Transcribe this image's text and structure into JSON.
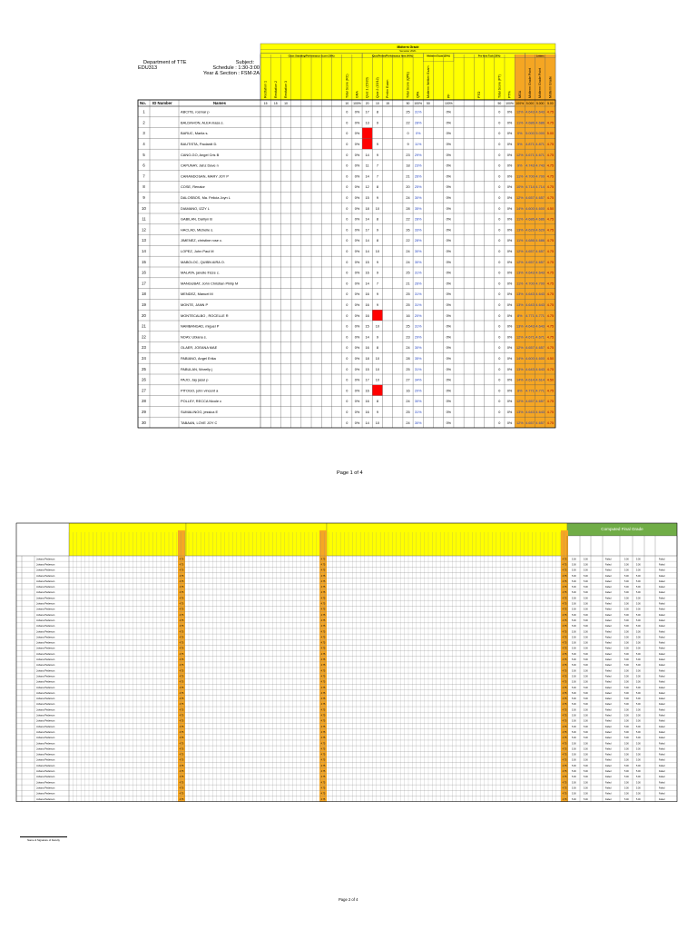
{
  "page1": {
    "department": "Department of TTE",
    "course": "EDU313",
    "subject_label": "Subject:",
    "schedule": "Schedule : 1:30-3:00",
    "year_section": "Year & Section : FSM-2A",
    "header": {
      "grade_title": "Midterm Grade",
      "semester": "Semester 2020-",
      "groups": [
        "Class Standing/Performance Score (30%)",
        "Quiz/Prelim/Performance Item (40%)",
        "Midterm Exam (30%)",
        "Pre-Item Task (30%)",
        "Letters"
      ],
      "columns": [
        "Recitation 1",
        "Recitation 2",
        "Recitation 3",
        "",
        "",
        "",
        "",
        "",
        "Total Score (RC)",
        "GRA",
        "Quiz 1 (15/20)",
        "Quiz 2 (15/12)",
        "Prelim Exam",
        "",
        "Total Score (QPE)",
        "QPA",
        "Midterm Written Exam",
        "",
        "PF",
        "",
        "",
        "PTO",
        "",
        "Total Score (PT)",
        "PT%",
        "MGA",
        "Midterm Grade Point",
        "Midterm Grade Point",
        "Midterm Grade"
      ],
      "row_no": "No.",
      "row_id": "ID Number",
      "row_names": "Names",
      "max_values": [
        "15",
        "15",
        "10",
        "",
        "",
        "",
        "",
        "",
        "10",
        "100%",
        "20",
        "10",
        "15",
        "",
        "50",
        "100%",
        "50",
        "",
        "100%",
        "",
        "",
        "",
        "",
        "50",
        "100%",
        "100%",
        "5.000",
        "5.000",
        "5.00"
      ]
    },
    "students": [
      {
        "no": "1",
        "name": "ABCITE, rosmar p",
        "gra": "0",
        "grp": "0%",
        "q1": "17",
        "q2": "8",
        "q1red": false,
        "q2red": false,
        "qpe": "25",
        "qpa": "31%",
        "mf": "0%",
        "pt": "0",
        "ptp": "0%",
        "mga": "12%",
        "g1": "4.643",
        "g2": "4.643",
        "mg": "4.75"
      },
      {
        "no": "2",
        "name": "BALDAHON, ALEA niasa s.",
        "gra": "0",
        "grp": "0%",
        "q1": "13",
        "q2": "9",
        "q1red": false,
        "q2red": false,
        "qpe": "22",
        "qpa": "28%",
        "mf": "0%",
        "pt": "0",
        "ptp": "0%",
        "mga": "11%",
        "g1": "4.686",
        "g2": "4.686",
        "mg": "4.75"
      },
      {
        "no": "3",
        "name": "BARUC, Mariia s.",
        "gra": "0",
        "grp": "0%",
        "q1": "",
        "q2": "",
        "q1red": true,
        "q2red": false,
        "qpe": "0",
        "qpa": "0%",
        "mf": "0%",
        "pt": "0",
        "ptp": "0%",
        "mga": "0%",
        "g1": "5.000",
        "g2": "5.000",
        "mg": "5.00"
      },
      {
        "no": "4",
        "name": "BAUTISTA, Paolardt D.",
        "gra": "0",
        "grp": "0%",
        "q1": "",
        "q2": "9",
        "q1red": true,
        "q2red": false,
        "qpe": "9",
        "qpa": "11%",
        "mf": "0%",
        "pt": "0",
        "ptp": "0%",
        "mga": "5%",
        "g1": "4.871",
        "g2": "4.871",
        "mg": "4.75"
      },
      {
        "no": "5",
        "name": "CANO-GO, Angel Cris B",
        "gra": "0",
        "grp": "0%",
        "q1": "14",
        "q2": "9",
        "q1red": false,
        "q2red": false,
        "qpe": "23",
        "qpa": "29%",
        "mf": "0%",
        "pt": "0",
        "ptp": "0%",
        "mga": "12%",
        "g1": "4.671",
        "g2": "4.671",
        "mg": "4.75"
      },
      {
        "no": "6",
        "name": "CAPUNAY, Jahz Dave n",
        "gra": "0",
        "grp": "0%",
        "q1": "11",
        "q2": "7",
        "q1red": false,
        "q2red": false,
        "qpe": "18",
        "qpa": "23%",
        "mf": "0%",
        "pt": "0",
        "ptp": "0%",
        "mga": "9%",
        "g1": "4.743",
        "g2": "4.743",
        "mg": "4.75"
      },
      {
        "no": "7",
        "name": "CARANDOSAN, MARY JOY P",
        "gra": "0",
        "grp": "0%",
        "q1": "14",
        "q2": "7",
        "q1red": false,
        "q2red": false,
        "qpe": "21",
        "qpa": "26%",
        "mf": "0%",
        "pt": "0",
        "ptp": "0%",
        "mga": "11%",
        "g1": "4.700",
        "g2": "4.700",
        "mg": "4.75"
      },
      {
        "no": "8",
        "name": "COSE, Renalor",
        "gra": "0",
        "grp": "0%",
        "q1": "12",
        "q2": "8",
        "q1red": false,
        "q2red": false,
        "qpe": "20",
        "qpa": "25%",
        "mf": "0%",
        "pt": "0",
        "ptp": "0%",
        "mga": "10%",
        "g1": "4.714",
        "g2": "4.714",
        "mg": "4.75"
      },
      {
        "no": "9",
        "name": "DALOSBOS, Ma. Felicia Joyn L",
        "gra": "0",
        "grp": "0%",
        "q1": "15",
        "q2": "9",
        "q1red": false,
        "q2red": false,
        "qpe": "24",
        "qpa": "30%",
        "mf": "0%",
        "pt": "0",
        "ptp": "0%",
        "mga": "12%",
        "g1": "4.657",
        "g2": "4.657",
        "mg": "4.75"
      },
      {
        "no": "10",
        "name": "DIAMANO, IZZY L",
        "gra": "0",
        "grp": "0%",
        "q1": "18",
        "q2": "10",
        "q1red": false,
        "q2red": false,
        "qpe": "28",
        "qpa": "35%",
        "mf": "0%",
        "pt": "0",
        "ptp": "0%",
        "mga": "14%",
        "g1": "4.600",
        "g2": "4.600",
        "mg": "4.50"
      },
      {
        "no": "11",
        "name": "GABILAN, Darilyn B",
        "gra": "0",
        "grp": "0%",
        "q1": "14",
        "q2": "8",
        "q1red": false,
        "q2red": false,
        "qpe": "22",
        "qpa": "28%",
        "mf": "0%",
        "pt": "0",
        "ptp": "0%",
        "mga": "11%",
        "g1": "4.686",
        "g2": "4.686",
        "mg": "4.75"
      },
      {
        "no": "12",
        "name": "HACLAD, Michelle s.",
        "gra": "0",
        "grp": "0%",
        "q1": "17",
        "q2": "9",
        "q1red": false,
        "q2red": false,
        "qpe": "26",
        "qpa": "33%",
        "mf": "0%",
        "pt": "0",
        "ptp": "0%",
        "mga": "13%",
        "g1": "4.629",
        "g2": "4.629",
        "mg": "4.75"
      },
      {
        "no": "13",
        "name": "JIMENEZ, christine rose c.",
        "gra": "0",
        "grp": "0%",
        "q1": "14",
        "q2": "8",
        "q1red": false,
        "q2red": false,
        "qpe": "22",
        "qpa": "28%",
        "mf": "0%",
        "pt": "0",
        "ptp": "0%",
        "mga": "11%",
        "g1": "4.686",
        "g2": "4.686",
        "mg": "4.75"
      },
      {
        "no": "14",
        "name": "LOPEZ, John Paul M",
        "gra": "0",
        "grp": "0%",
        "q1": "14",
        "q2": "10",
        "q1red": false,
        "q2red": false,
        "qpe": "24",
        "qpa": "30%",
        "mf": "0%",
        "pt": "0",
        "ptp": "0%",
        "mga": "12%",
        "g1": "4.657",
        "g2": "4.657",
        "mg": "4.75"
      },
      {
        "no": "15",
        "name": "MABOLOC, QUIBN AIRA O.",
        "gra": "0",
        "grp": "0%",
        "q1": "15",
        "q2": "9",
        "q1red": false,
        "q2red": false,
        "qpe": "24",
        "qpa": "30%",
        "mf": "0%",
        "pt": "0",
        "ptp": "0%",
        "mga": "12%",
        "g1": "4.657",
        "g2": "4.657",
        "mg": "4.75"
      },
      {
        "no": "16",
        "name": "MALATA, janelle frizze c.",
        "gra": "0",
        "grp": "0%",
        "q1": "16",
        "q2": "9",
        "q1red": false,
        "q2red": false,
        "qpe": "25",
        "qpa": "31%",
        "mf": "0%",
        "pt": "0",
        "ptp": "0%",
        "mga": "13%",
        "g1": "4.643",
        "g2": "4.643",
        "mg": "4.75"
      },
      {
        "no": "17",
        "name": "MANGUBAT, John Christian Philip M",
        "gra": "0",
        "grp": "0%",
        "q1": "14",
        "q2": "7",
        "q1red": false,
        "q2red": false,
        "qpe": "21",
        "qpa": "26%",
        "mf": "0%",
        "pt": "0",
        "ptp": "0%",
        "mga": "11%",
        "g1": "4.700",
        "g2": "4.700",
        "mg": "4.75"
      },
      {
        "no": "18",
        "name": "MENDEZ, Manuel M",
        "gra": "0",
        "grp": "0%",
        "q1": "16",
        "q2": "9",
        "q1red": false,
        "q2red": false,
        "qpe": "25",
        "qpa": "31%",
        "mf": "0%",
        "pt": "0",
        "ptp": "0%",
        "mga": "13%",
        "g1": "4.643",
        "g2": "4.643",
        "mg": "4.75"
      },
      {
        "no": "19",
        "name": "MONTE, JANN P",
        "gra": "0",
        "grp": "0%",
        "q1": "16",
        "q2": "9",
        "q1red": false,
        "q2red": false,
        "qpe": "25",
        "qpa": "31%",
        "mf": "0%",
        "pt": "0",
        "ptp": "0%",
        "mga": "13%",
        "g1": "4.643",
        "g2": "4.643",
        "mg": "4.75"
      },
      {
        "no": "20",
        "name": "MONTECALBO , ROCELLE R",
        "gra": "0",
        "grp": "0%",
        "q1": "16",
        "q2": "",
        "q1red": false,
        "q2red": true,
        "qpe": "16",
        "qpa": "20%",
        "mf": "0%",
        "pt": "0",
        "ptp": "0%",
        "mga": "8%",
        "g1": "4.771",
        "g2": "4.771",
        "mg": "4.75"
      },
      {
        "no": "21",
        "name": "NAMBANGAD, miguel P",
        "gra": "0",
        "grp": "0%",
        "q1": "15",
        "q2": "10",
        "q1red": false,
        "q2red": false,
        "qpe": "25",
        "qpa": "31%",
        "mf": "0%",
        "pt": "0",
        "ptp": "0%",
        "mga": "13%",
        "g1": "4.643",
        "g2": "4.643",
        "mg": "4.75"
      },
      {
        "no": "22",
        "name": "NOAY, Ubiana s.",
        "gra": "0",
        "grp": "0%",
        "q1": "14",
        "q2": "9",
        "q1red": false,
        "q2red": false,
        "qpe": "23",
        "qpa": "29%",
        "mf": "0%",
        "pt": "0",
        "ptp": "0%",
        "mga": "12%",
        "g1": "4.671",
        "g2": "4.671",
        "mg": "4.75"
      },
      {
        "no": "23",
        "name": "OLAER, JOEANA MAE",
        "gra": "0",
        "grp": "0%",
        "q1": "16",
        "q2": "8",
        "q1red": false,
        "q2red": false,
        "qpe": "24",
        "qpa": "30%",
        "mf": "0%",
        "pt": "0",
        "ptp": "0%",
        "mga": "12%",
        "g1": "4.657",
        "g2": "4.657",
        "mg": "4.75"
      },
      {
        "no": "24",
        "name": "PABIANO, Angel Erika",
        "gra": "0",
        "grp": "0%",
        "q1": "18",
        "q2": "10",
        "q1red": false,
        "q2red": false,
        "qpe": "28",
        "qpa": "35%",
        "mf": "0%",
        "pt": "0",
        "ptp": "0%",
        "mga": "14%",
        "g1": "4.600",
        "g2": "4.600",
        "mg": "4.50"
      },
      {
        "no": "25",
        "name": "PABULAN, Worelly j",
        "gra": "0",
        "grp": "0%",
        "q1": "15",
        "q2": "10",
        "q1red": false,
        "q2red": false,
        "qpe": "25",
        "qpa": "31%",
        "mf": "0%",
        "pt": "0",
        "ptp": "0%",
        "mga": "13%",
        "g1": "4.643",
        "g2": "4.643",
        "mg": "4.75"
      },
      {
        "no": "26",
        "name": "PAJO, Jay jasul p",
        "gra": "0",
        "grp": "0%",
        "q1": "17",
        "q2": "10",
        "q1red": false,
        "q2red": false,
        "qpe": "27",
        "qpa": "34%",
        "mf": "0%",
        "pt": "0",
        "ptp": "0%",
        "mga": "14%",
        "g1": "4.614",
        "g2": "4.614",
        "mg": "4.50"
      },
      {
        "no": "27",
        "name": "PITOGO, john vincent a",
        "gra": "0",
        "grp": "0%",
        "q1": "16",
        "q2": "",
        "q1red": false,
        "q2red": true,
        "qpe": "16",
        "qpa": "20%",
        "mf": "0%",
        "pt": "0",
        "ptp": "0%",
        "mga": "8%",
        "g1": "4.771",
        "g2": "4.771",
        "mg": "4.75"
      },
      {
        "no": "28",
        "name": "POLLEY, RECCA Nicole c",
        "gra": "0",
        "grp": "0%",
        "q1": "16",
        "q2": "8",
        "q1red": false,
        "q2red": false,
        "qpe": "24",
        "qpa": "30%",
        "mf": "0%",
        "pt": "0",
        "ptp": "0%",
        "mga": "12%",
        "g1": "4.657",
        "g2": "4.657",
        "mg": "4.75"
      },
      {
        "no": "29",
        "name": "SUMALINOG, jessica E",
        "gra": "0",
        "grp": "0%",
        "q1": "16",
        "q2": "9",
        "q1red": false,
        "q2red": false,
        "qpe": "25",
        "qpa": "31%",
        "mf": "0%",
        "pt": "0",
        "ptp": "0%",
        "mga": "13%",
        "g1": "4.643",
        "g2": "4.643",
        "mg": "4.75"
      },
      {
        "no": "30",
        "name": "TABAAN, LOVE JOY C",
        "gra": "0",
        "grp": "0%",
        "q1": "14",
        "q2": "10",
        "q1red": false,
        "q2red": false,
        "qpe": "24",
        "qpa": "30%",
        "mf": "0%",
        "pt": "0",
        "ptp": "0%",
        "mga": "12%",
        "g1": "4.657",
        "g2": "4.657",
        "mg": "4.75"
      }
    ],
    "page_label": "Page 1 of 4"
  },
  "page2": {
    "computed_final_grade": "Computed Final Grade",
    "row_name": "Juhana Pederson",
    "remark": "Failed",
    "mg": "4.75",
    "grade_value": "5.00",
    "signature_label": "Name & Signature of Faculty",
    "page_label": "Page 2 of 4"
  },
  "colors": {
    "yellow_header": "#ffff00",
    "orange": "#f5a623",
    "red_cell": "#ff0000",
    "green_header": "#70ad47",
    "grid": "#555555"
  }
}
